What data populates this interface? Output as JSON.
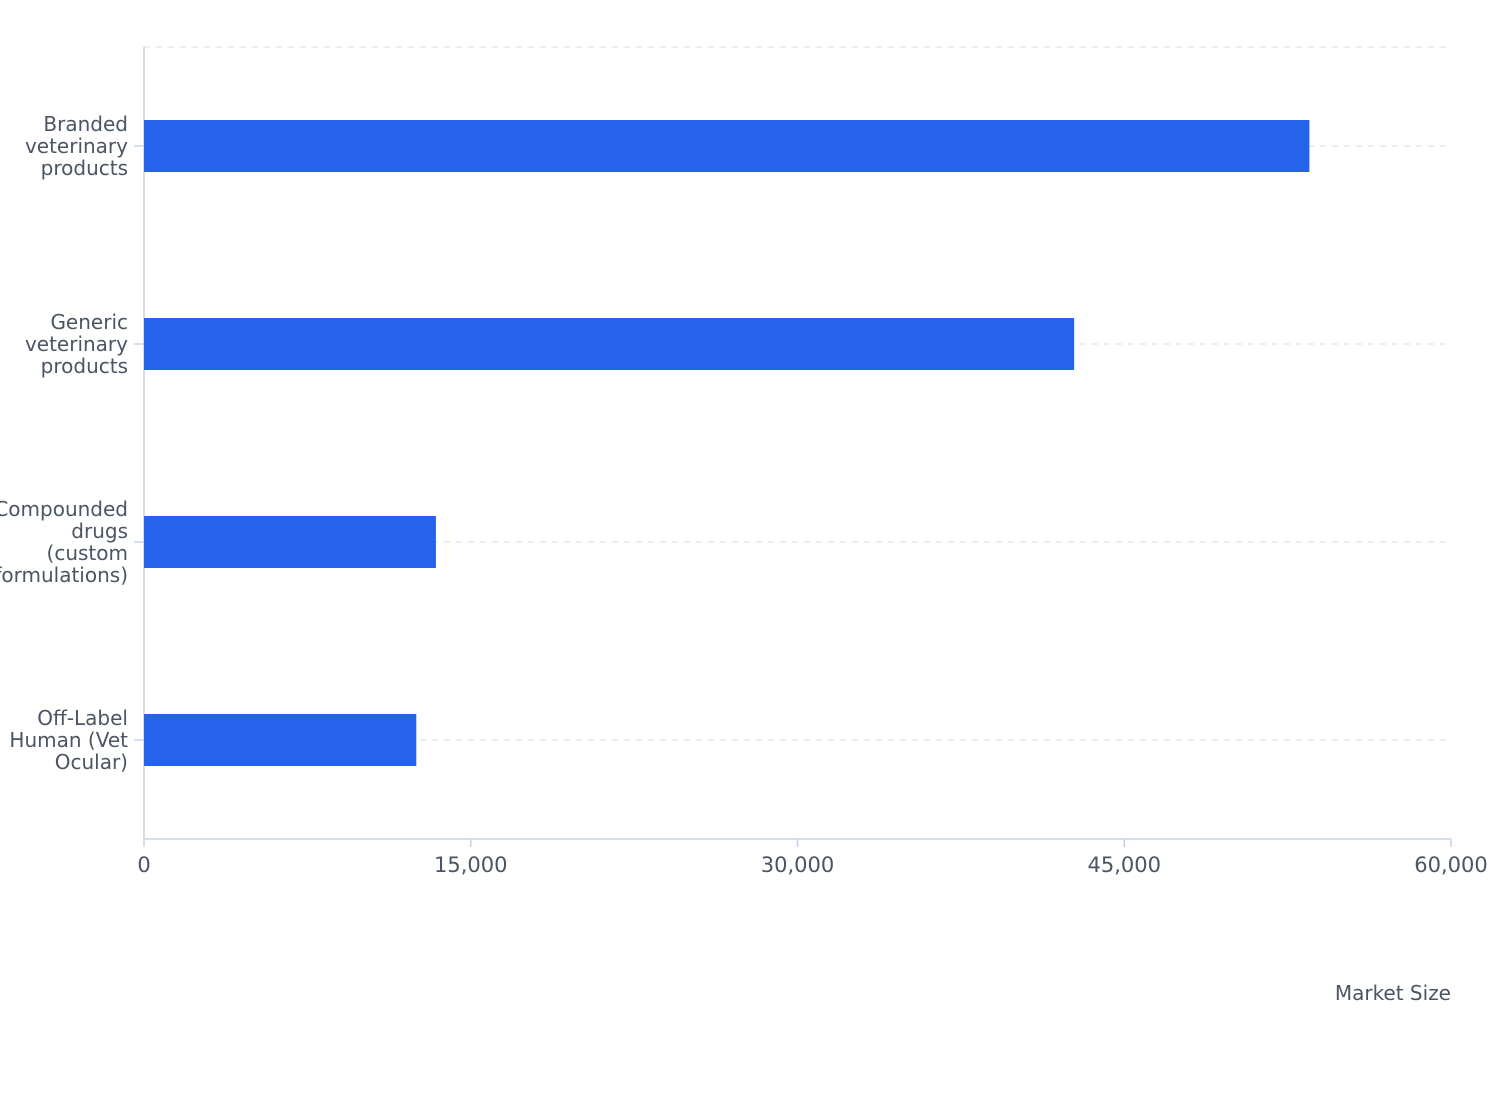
{
  "chart_data": {
    "type": "bar",
    "orientation": "horizontal",
    "categories": [
      [
        "Branded",
        "veterinary",
        "products"
      ],
      [
        "Generic",
        "veterinary",
        "products"
      ],
      [
        "Compounded",
        "drugs",
        "(custom",
        "formulations)"
      ],
      [
        "Off-Label",
        "Human (Vet",
        "Ocular)"
      ]
    ],
    "values": [
      53500,
      42700,
      13400,
      12500
    ],
    "xlim": [
      0,
      60000
    ],
    "xticks": [
      0,
      15000,
      30000,
      45000,
      60000
    ],
    "xtick_labels": [
      "0",
      "15,000",
      "30,000",
      "45,000",
      "60,000"
    ],
    "xlabel": "Market Size",
    "grid": true,
    "bar_color": "#2563eb",
    "axis_color": "#c7d2e6",
    "grid_color": "#e5e7eb"
  }
}
